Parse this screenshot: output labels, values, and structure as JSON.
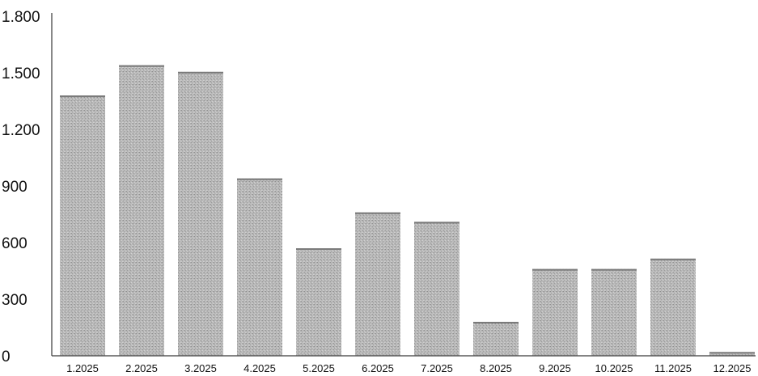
{
  "chart_data": {
    "type": "bar",
    "title": "",
    "xlabel": "",
    "ylabel": "",
    "categories": [
      "1.2025",
      "2.2025",
      "3.2025",
      "4.2025",
      "5.2025",
      "6.2025",
      "7.2025",
      "8.2025",
      "9.2025",
      "10.2025",
      "11.2025",
      "12.2025"
    ],
    "values": [
      1380,
      1540,
      1505,
      940,
      570,
      760,
      710,
      180,
      460,
      460,
      515,
      20
    ],
    "ylim": [
      0,
      1800
    ],
    "yticks": [
      0,
      300,
      600,
      900,
      1200,
      1500,
      1800
    ],
    "ytick_labels": [
      "0",
      "300",
      "600",
      "900",
      "1.200",
      "1.500",
      "1.800"
    ],
    "grid": false,
    "legend": "none",
    "bar_color": "#b4b4b4"
  }
}
